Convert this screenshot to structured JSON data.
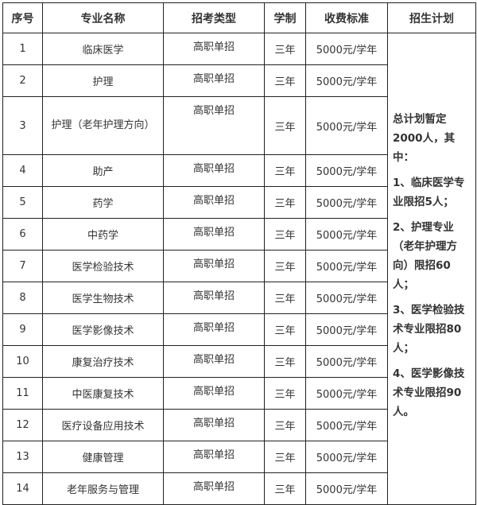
{
  "headers": [
    "序号",
    "专业名称",
    "招考类型",
    "学制",
    "收费标准",
    "招生计划"
  ],
  "rows": [
    {
      "no": "1",
      "name": "临床医学",
      "type": "高职单招",
      "years": "三年",
      "fee": "5000元/学年"
    },
    {
      "no": "2",
      "name": "护理",
      "type": "高职单招",
      "years": "三年",
      "fee": "5000元/学年"
    },
    {
      "no": "3",
      "name": "护理（老年护理方向）",
      "type": "高职单招",
      "years": "三年",
      "fee": "5000元/学年"
    },
    {
      "no": "4",
      "name": "助产",
      "type": "高职单招",
      "years": "三年",
      "fee": "5000元/学年"
    },
    {
      "no": "5",
      "name": "药学",
      "type": "高职单招",
      "years": "三年",
      "fee": "5000元/学年"
    },
    {
      "no": "6",
      "name": "中药学",
      "type": "高职单招",
      "years": "三年",
      "fee": "5000元/学年"
    },
    {
      "no": "7",
      "name": "医学检验技术",
      "type": "高职单招",
      "years": "三年",
      "fee": "5000元/学年"
    },
    {
      "no": "8",
      "name": "医学生物技术",
      "type": "高职单招",
      "years": "三年",
      "fee": "5000元/学年"
    },
    {
      "no": "9",
      "name": "医学影像技术",
      "type": "高职单招",
      "years": "三年",
      "fee": "5000元/学年"
    },
    {
      "no": "10",
      "name": "康复治疗技术",
      "type": "高职单招",
      "years": "三年",
      "fee": "5000元/学年"
    },
    {
      "no": "11",
      "name": "中医康复技术",
      "type": "高职单招",
      "years": "三年",
      "fee": "5000元/学年"
    },
    {
      "no": "12",
      "name": "医疗设备应用技术",
      "type": "高职单招",
      "years": "三年",
      "fee": "5000元/学年"
    },
    {
      "no": "13",
      "name": "健康管理",
      "type": "高职单招",
      "years": "三年",
      "fee": "5000元/学年"
    },
    {
      "no": "14",
      "name": "老年服务与管理",
      "type": "高职单招",
      "years": "三年",
      "fee": "5000元/学年"
    }
  ],
  "plan": [
    "总计划暂定2000人，其中：",
    "1、临床医学专业限招5人；",
    "2、护理专业（老年护理方向）限招60人；",
    "3、医学检验技术专业限招80人；",
    "4、医学影像技术专业限招90人。"
  ]
}
